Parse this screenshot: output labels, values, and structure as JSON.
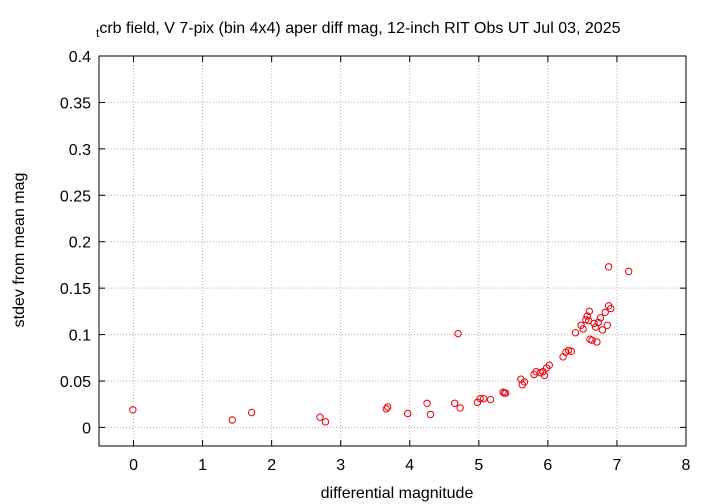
{
  "chart_data": {
    "type": "scatter",
    "title_prefix": "t",
    "title": "crb field, V 7-pix (bin 4x4) aper diff mag,  12-inch RIT Obs UT Jul 03, 2025",
    "xlabel": "differential magnitude",
    "ylabel": "stdev from mean mag",
    "xlim": [
      -0.5,
      8
    ],
    "ylim": [
      -0.02,
      0.4
    ],
    "xticks": [
      0,
      1,
      2,
      3,
      4,
      5,
      6,
      7,
      8
    ],
    "yticks": [
      0,
      0.05,
      0.1,
      0.15,
      0.2,
      0.25,
      0.3,
      0.35,
      0.4
    ],
    "xtick_labels": [
      "0",
      "1",
      "2",
      "3",
      "4",
      "5",
      "6",
      "7",
      "8"
    ],
    "ytick_labels": [
      "0",
      "0.05",
      "0.1",
      "0.15",
      "0.2",
      "0.25",
      "0.3",
      "0.35",
      "0.4"
    ],
    "grid": true,
    "marker": "open-circle",
    "color": "#e8000b",
    "points": [
      [
        -0.01,
        0.019
      ],
      [
        1.43,
        0.008
      ],
      [
        1.71,
        0.016
      ],
      [
        2.7,
        0.011
      ],
      [
        2.78,
        0.006
      ],
      [
        3.66,
        0.02
      ],
      [
        3.68,
        0.022
      ],
      [
        3.97,
        0.015
      ],
      [
        4.25,
        0.026
      ],
      [
        4.3,
        0.014
      ],
      [
        4.65,
        0.026
      ],
      [
        4.7,
        0.101
      ],
      [
        4.73,
        0.021
      ],
      [
        4.98,
        0.027
      ],
      [
        5.02,
        0.031
      ],
      [
        5.07,
        0.031
      ],
      [
        5.17,
        0.03
      ],
      [
        5.35,
        0.038
      ],
      [
        5.37,
        0.037
      ],
      [
        5.39,
        0.037
      ],
      [
        5.61,
        0.052
      ],
      [
        5.63,
        0.046
      ],
      [
        5.66,
        0.049
      ],
      [
        5.8,
        0.057
      ],
      [
        5.83,
        0.06
      ],
      [
        5.89,
        0.059
      ],
      [
        5.93,
        0.06
      ],
      [
        5.95,
        0.056
      ],
      [
        5.98,
        0.064
      ],
      [
        6.02,
        0.067
      ],
      [
        6.22,
        0.076
      ],
      [
        6.26,
        0.081
      ],
      [
        6.3,
        0.083
      ],
      [
        6.34,
        0.082
      ],
      [
        6.4,
        0.102
      ],
      [
        6.48,
        0.11
      ],
      [
        6.51,
        0.106
      ],
      [
        6.55,
        0.116
      ],
      [
        6.57,
        0.12
      ],
      [
        6.59,
        0.115
      ],
      [
        6.6,
        0.125
      ],
      [
        6.61,
        0.095
      ],
      [
        6.64,
        0.094
      ],
      [
        6.67,
        0.112
      ],
      [
        6.69,
        0.108
      ],
      [
        6.71,
        0.092
      ],
      [
        6.73,
        0.113
      ],
      [
        6.76,
        0.118
      ],
      [
        6.79,
        0.105
      ],
      [
        6.83,
        0.124
      ],
      [
        6.86,
        0.11
      ],
      [
        6.88,
        0.131
      ],
      [
        6.91,
        0.128
      ],
      [
        6.88,
        0.173
      ],
      [
        7.17,
        0.168
      ]
    ]
  }
}
